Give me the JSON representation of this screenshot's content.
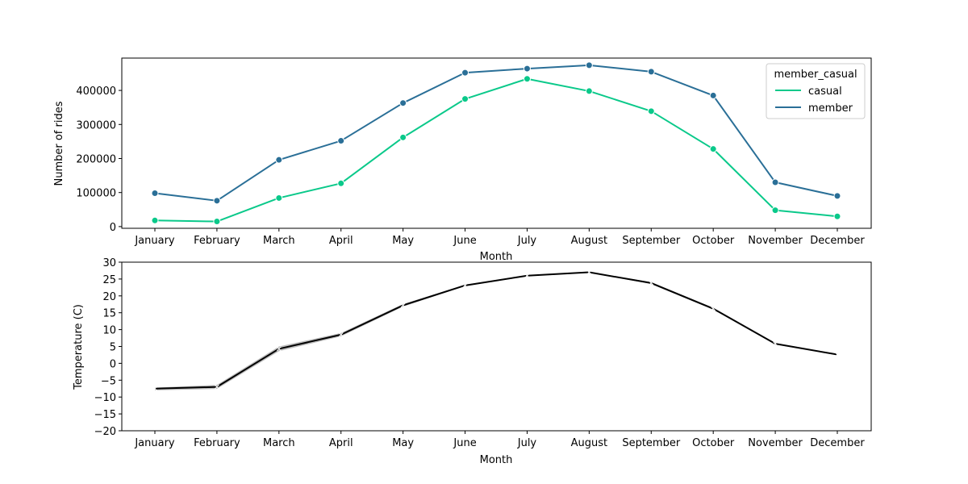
{
  "chart_data": [
    {
      "type": "line",
      "xlabel": "Month",
      "ylabel": "Number of rides",
      "categories": [
        "January",
        "February",
        "March",
        "April",
        "May",
        "June",
        "July",
        "August",
        "September",
        "October",
        "November",
        "December"
      ],
      "ylim": [
        -5000,
        495000
      ],
      "yticks": [
        0,
        100000,
        200000,
        300000,
        400000
      ],
      "ytick_labels": [
        "0",
        "100000",
        "200000",
        "300000",
        "400000"
      ],
      "legend": {
        "title": "member_casual",
        "placement": "top-right"
      },
      "series": [
        {
          "name": "casual",
          "color": "#0ac98a",
          "values": [
            18000,
            15000,
            84000,
            127000,
            262000,
            375000,
            434000,
            398000,
            339000,
            228000,
            48000,
            30000
          ]
        },
        {
          "name": "member",
          "color": "#2a6f97",
          "values": [
            98000,
            76000,
            196000,
            252000,
            363000,
            452000,
            464000,
            474000,
            455000,
            385000,
            130000,
            90000
          ]
        }
      ]
    },
    {
      "type": "line",
      "xlabel": "Month",
      "ylabel": "Temperature (C)",
      "categories": [
        "January",
        "February",
        "March",
        "April",
        "May",
        "June",
        "July",
        "August",
        "September",
        "October",
        "November",
        "December"
      ],
      "ylim": [
        -20,
        30
      ],
      "yticks": [
        -20,
        -15,
        -10,
        -5,
        0,
        5,
        10,
        15,
        20,
        25,
        30
      ],
      "ytick_labels": [
        "−20",
        "−15",
        "−10",
        "−5",
        "0",
        "5",
        "10",
        "15",
        "20",
        "25",
        "30"
      ],
      "series": [
        {
          "color": "#000000",
          "band_color": "#b0b0b0",
          "values": [
            -7.5,
            -7.0,
            4.3,
            8.5,
            17.2,
            23.1,
            26.0,
            27.0,
            23.8,
            16.2,
            5.8,
            2.6
          ],
          "band_low": [
            -8.0,
            -7.6,
            3.6,
            8.0,
            16.8,
            22.9,
            25.9,
            26.9,
            23.5,
            15.9,
            5.6,
            2.5
          ],
          "band_high": [
            -7.2,
            -6.4,
            5.0,
            9.0,
            17.6,
            23.3,
            26.1,
            27.1,
            24.1,
            16.5,
            6.0,
            2.7
          ]
        }
      ]
    }
  ]
}
